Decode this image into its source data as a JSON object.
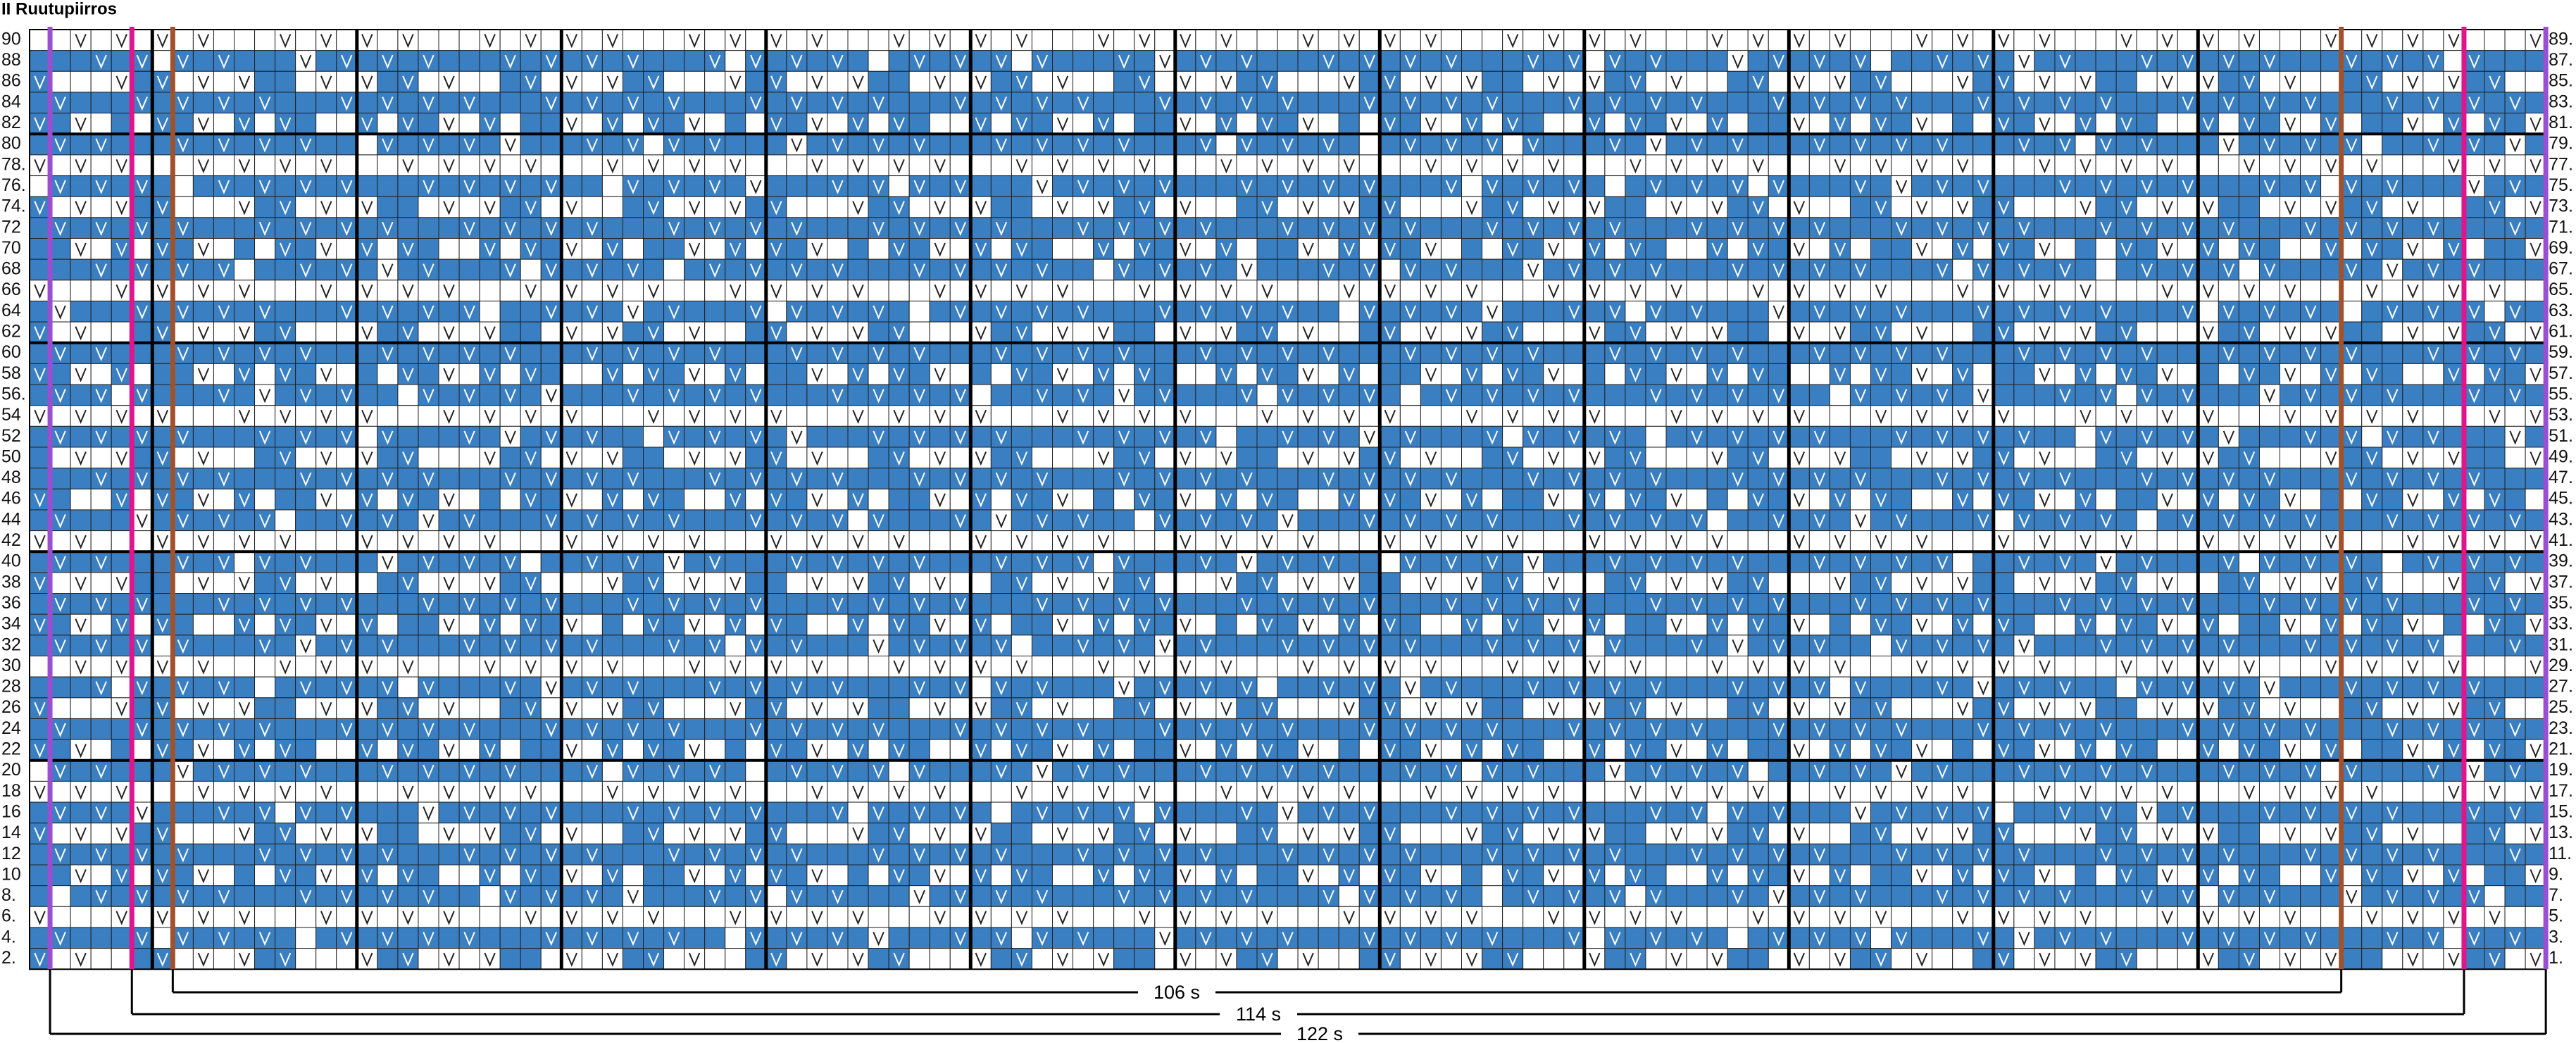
{
  "title": "II Ruutupiirros",
  "left_labels": [
    "90",
    "88",
    "86",
    "84",
    "82",
    "80",
    "78.",
    "76.",
    "74.",
    "72",
    "70",
    "68",
    "66",
    "64",
    "62",
    "60",
    "58",
    "56.",
    "54",
    "52",
    "50",
    "48",
    "46",
    "44",
    "42",
    "40",
    "38",
    "36",
    "34",
    "32",
    "30",
    "28",
    "26",
    "24",
    "22",
    "20",
    "18",
    "16",
    "14",
    "12",
    "10",
    "8.",
    "6.",
    "4.",
    "2."
  ],
  "right_labels": [
    "89.",
    "87.",
    "85.",
    "83.",
    "81.",
    "79.",
    "77.",
    "75.",
    "73.",
    "71.",
    "69.",
    "67.",
    "65.",
    "63.",
    "61.",
    "59.",
    "57.",
    "55.",
    "53.",
    "51.",
    "49.",
    "47.",
    "45.",
    "43.",
    "41.",
    "39.",
    "37.",
    "35.",
    "33.",
    "31.",
    "29.",
    "27.",
    "25.",
    "23.",
    "21.",
    "19.",
    "17.",
    "15.",
    "13.",
    "11.",
    "9.",
    "7.",
    "5.",
    "3.",
    "1."
  ],
  "widths": [
    "106 s",
    "114 s",
    "122 s"
  ]
}
